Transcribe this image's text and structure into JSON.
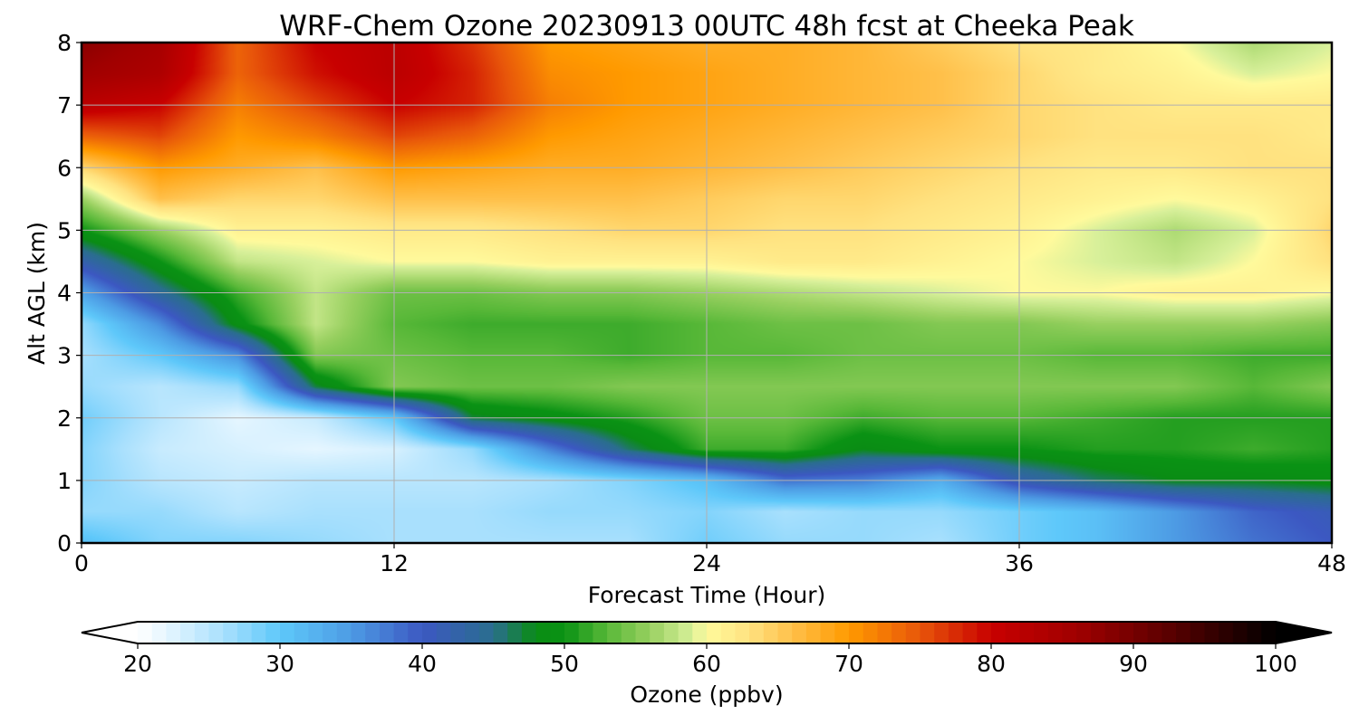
{
  "chart_data": {
    "type": "heatmap",
    "title": "WRF-Chem Ozone  20230913 00UTC 48h fcst at Cheeka Peak",
    "xlabel": "Forecast Time (Hour)",
    "ylabel": "Alt AGL (km)",
    "xlim": [
      0,
      48
    ],
    "ylim": [
      0,
      8
    ],
    "x_ticks": [
      "0",
      "12",
      "24",
      "36",
      "48"
    ],
    "y_ticks": [
      "0",
      "1",
      "2",
      "3",
      "4",
      "5",
      "6",
      "7",
      "8"
    ],
    "grid": true,
    "x": [
      0,
      3,
      6,
      9,
      12,
      15,
      18,
      21,
      24,
      27,
      30,
      33,
      36,
      39,
      42,
      45,
      48
    ],
    "y": [
      0,
      0.5,
      1,
      1.5,
      2,
      2.5,
      3,
      3.5,
      4,
      4.5,
      5,
      5.5,
      6,
      6.5,
      7,
      7.5,
      8
    ],
    "z": [
      [
        31,
        28,
        28,
        27,
        26,
        26,
        26,
        26,
        29,
        27,
        27,
        26,
        29,
        31,
        35,
        38,
        40
      ],
      [
        27,
        27,
        25,
        26,
        26,
        26,
        27,
        27,
        28,
        26,
        27,
        27,
        29,
        31,
        35,
        39,
        41
      ],
      [
        28,
        25,
        24,
        25,
        25,
        25,
        26,
        28,
        31,
        38,
        37,
        33,
        42,
        46,
        48,
        48,
        49
      ],
      [
        28,
        24,
        23,
        22,
        23,
        27,
        37,
        46,
        52,
        52,
        48,
        50,
        50,
        51,
        51,
        52,
        51
      ],
      [
        29,
        25,
        22,
        24,
        30,
        47,
        49,
        51,
        54,
        54,
        52,
        53,
        53,
        52,
        51,
        51,
        51
      ],
      [
        27,
        25,
        27,
        47,
        55,
        54,
        54,
        55,
        55,
        55,
        55,
        55,
        55,
        55,
        55,
        53,
        55
      ],
      [
        26,
        30,
        36,
        55,
        54,
        53,
        53,
        52,
        53,
        53,
        54,
        54,
        54,
        53,
        53,
        52,
        52
      ],
      [
        27,
        36,
        49,
        58,
        53,
        52,
        52,
        52,
        53,
        54,
        54,
        55,
        55,
        56,
        56,
        56,
        55
      ],
      [
        34,
        44,
        52,
        58,
        54,
        54,
        55,
        55,
        56,
        57,
        58,
        59,
        60,
        60,
        61,
        61,
        60
      ],
      [
        42,
        50,
        58,
        59,
        60,
        60,
        61,
        61,
        61,
        62,
        62,
        61,
        60,
        59,
        58,
        60,
        63
      ],
      [
        50,
        56,
        61,
        61,
        62,
        62,
        63,
        64,
        64,
        63,
        63,
        62,
        61,
        59,
        57,
        59,
        64
      ],
      [
        56,
        66,
        64,
        64,
        66,
        66,
        66,
        66,
        65,
        64,
        64,
        63,
        62,
        61,
        60,
        61,
        63
      ],
      [
        64,
        70,
        68,
        66,
        70,
        69,
        68,
        68,
        67,
        66,
        65,
        64,
        63,
        62,
        62,
        63,
        63
      ],
      [
        74,
        76,
        70,
        72,
        76,
        74,
        70,
        69,
        68,
        67,
        66,
        65,
        64,
        63,
        63,
        63,
        62
      ],
      [
        82,
        80,
        72,
        76,
        80,
        78,
        72,
        70,
        69,
        68,
        67,
        66,
        64,
        63,
        62,
        62,
        62
      ],
      [
        86,
        84,
        74,
        79,
        82,
        78,
        71,
        70,
        69,
        68,
        67,
        66,
        64,
        62,
        61,
        59,
        60
      ],
      [
        88,
        85,
        74,
        80,
        82,
        77,
        70,
        69,
        68,
        68,
        67,
        65,
        63,
        62,
        60,
        57,
        59
      ]
    ],
    "colorbar": {
      "label": "Ozone  (ppbv)",
      "min": 20,
      "max": 100,
      "ticks": [
        "20",
        "30",
        "40",
        "50",
        "60",
        "70",
        "80",
        "90",
        "100"
      ],
      "extend": "both",
      "colors": [
        {
          "value": 20,
          "color": "#ffffff"
        },
        {
          "value": 22,
          "color": "#e6f6ff"
        },
        {
          "value": 26,
          "color": "#a9e0fd"
        },
        {
          "value": 30,
          "color": "#5ec8fa"
        },
        {
          "value": 35,
          "color": "#4d9be4"
        },
        {
          "value": 40,
          "color": "#3c58c2"
        },
        {
          "value": 45,
          "color": "#2a6e8e"
        },
        {
          "value": 48,
          "color": "#0a8c14"
        },
        {
          "value": 50,
          "color": "#0a9214"
        },
        {
          "value": 53,
          "color": "#58b838"
        },
        {
          "value": 56,
          "color": "#98d060"
        },
        {
          "value": 59,
          "color": "#d8f09a"
        },
        {
          "value": 60,
          "color": "#fffa9c"
        },
        {
          "value": 63,
          "color": "#ffe280"
        },
        {
          "value": 66,
          "color": "#ffc04a"
        },
        {
          "value": 70,
          "color": "#ff9a00"
        },
        {
          "value": 75,
          "color": "#e8560a"
        },
        {
          "value": 80,
          "color": "#c80000"
        },
        {
          "value": 86,
          "color": "#a00000"
        },
        {
          "value": 92,
          "color": "#600000"
        },
        {
          "value": 100,
          "color": "#000000"
        }
      ]
    }
  }
}
